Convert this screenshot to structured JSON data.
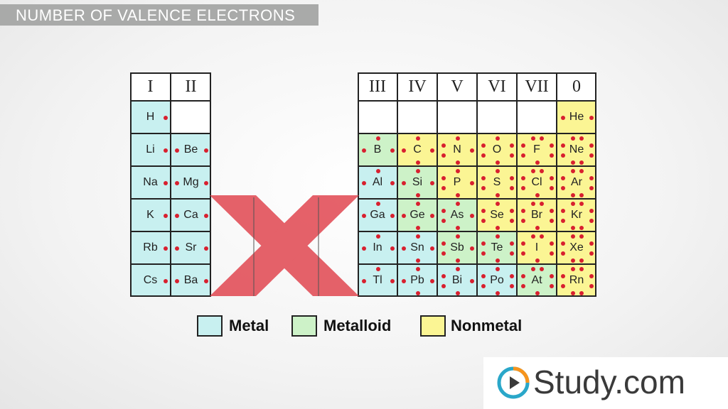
{
  "title": "NUMBER OF VALENCE ELECTRONS",
  "left_headers": [
    "I",
    "II"
  ],
  "right_headers": [
    "III",
    "IV",
    "V",
    "VI",
    "VII",
    "0"
  ],
  "left_rows": [
    [
      {
        "symbol": "H",
        "category": "metal",
        "electrons": 1
      },
      {
        "symbol": "",
        "category": "empty",
        "electrons": 0
      }
    ],
    [
      {
        "symbol": "Li",
        "category": "metal",
        "electrons": 1
      },
      {
        "symbol": "Be",
        "category": "metal",
        "electrons": 2
      }
    ],
    [
      {
        "symbol": "Na",
        "category": "metal",
        "electrons": 1
      },
      {
        "symbol": "Mg",
        "category": "metal",
        "electrons": 2
      }
    ],
    [
      {
        "symbol": "K",
        "category": "metal",
        "electrons": 1
      },
      {
        "symbol": "Ca",
        "category": "metal",
        "electrons": 2
      }
    ],
    [
      {
        "symbol": "Rb",
        "category": "metal",
        "electrons": 1
      },
      {
        "symbol": "Sr",
        "category": "metal",
        "electrons": 2
      }
    ],
    [
      {
        "symbol": "Cs",
        "category": "metal",
        "electrons": 1
      },
      {
        "symbol": "Ba",
        "category": "metal",
        "electrons": 2
      }
    ]
  ],
  "right_rows": [
    [
      {
        "symbol": "",
        "category": "empty",
        "electrons": 0
      },
      {
        "symbol": "",
        "category": "empty",
        "electrons": 0
      },
      {
        "symbol": "",
        "category": "empty",
        "electrons": 0
      },
      {
        "symbol": "",
        "category": "empty",
        "electrons": 0
      },
      {
        "symbol": "",
        "category": "empty",
        "electrons": 0
      },
      {
        "symbol": "He",
        "category": "nonmetal",
        "electrons": 2
      }
    ],
    [
      {
        "symbol": "B",
        "category": "metalloid",
        "electrons": 3
      },
      {
        "symbol": "C",
        "category": "nonmetal",
        "electrons": 4
      },
      {
        "symbol": "N",
        "category": "nonmetal",
        "electrons": 5
      },
      {
        "symbol": "O",
        "category": "nonmetal",
        "electrons": 6
      },
      {
        "symbol": "F",
        "category": "nonmetal",
        "electrons": 7
      },
      {
        "symbol": "Ne",
        "category": "nonmetal",
        "electrons": 8
      }
    ],
    [
      {
        "symbol": "Al",
        "category": "metal",
        "electrons": 3
      },
      {
        "symbol": "Si",
        "category": "metalloid",
        "electrons": 4
      },
      {
        "symbol": "P",
        "category": "nonmetal",
        "electrons": 5
      },
      {
        "symbol": "S",
        "category": "nonmetal",
        "electrons": 6
      },
      {
        "symbol": "Cl",
        "category": "nonmetal",
        "electrons": 7
      },
      {
        "symbol": "Ar",
        "category": "nonmetal",
        "electrons": 8
      }
    ],
    [
      {
        "symbol": "Ga",
        "category": "metal",
        "electrons": 3
      },
      {
        "symbol": "Ge",
        "category": "metalloid",
        "electrons": 4
      },
      {
        "symbol": "As",
        "category": "metalloid",
        "electrons": 5
      },
      {
        "symbol": "Se",
        "category": "nonmetal",
        "electrons": 6
      },
      {
        "symbol": "Br",
        "category": "nonmetal",
        "electrons": 7
      },
      {
        "symbol": "Kr",
        "category": "nonmetal",
        "electrons": 8
      }
    ],
    [
      {
        "symbol": "In",
        "category": "metal",
        "electrons": 3
      },
      {
        "symbol": "Sn",
        "category": "metal",
        "electrons": 4
      },
      {
        "symbol": "Sb",
        "category": "metalloid",
        "electrons": 5
      },
      {
        "symbol": "Te",
        "category": "metalloid",
        "electrons": 6
      },
      {
        "symbol": "I",
        "category": "nonmetal",
        "electrons": 7
      },
      {
        "symbol": "Xe",
        "category": "nonmetal",
        "electrons": 8
      }
    ],
    [
      {
        "symbol": "Tl",
        "category": "metal",
        "electrons": 3
      },
      {
        "symbol": "Pb",
        "category": "metal",
        "electrons": 4
      },
      {
        "symbol": "Bi",
        "category": "metal",
        "electrons": 5
      },
      {
        "symbol": "Po",
        "category": "metal",
        "electrons": 6
      },
      {
        "symbol": "At",
        "category": "metalloid",
        "electrons": 7
      },
      {
        "symbol": "Rn",
        "category": "nonmetal",
        "electrons": 8
      }
    ]
  ],
  "legend": [
    {
      "label": "Metal",
      "color": "#c8f0f0"
    },
    {
      "label": "Metalloid",
      "color": "#cdf2c8"
    },
    {
      "label": "Nonmetal",
      "color": "#fbf594"
    }
  ],
  "colors": {
    "metal": "#c8f0f0",
    "metalloid": "#cdf2c8",
    "nonmetal": "#fbf594",
    "electron_dot": "#d8202f",
    "cross": "#e0404a"
  },
  "brand": {
    "name": "Study.com",
    "icon": "play-icon"
  }
}
